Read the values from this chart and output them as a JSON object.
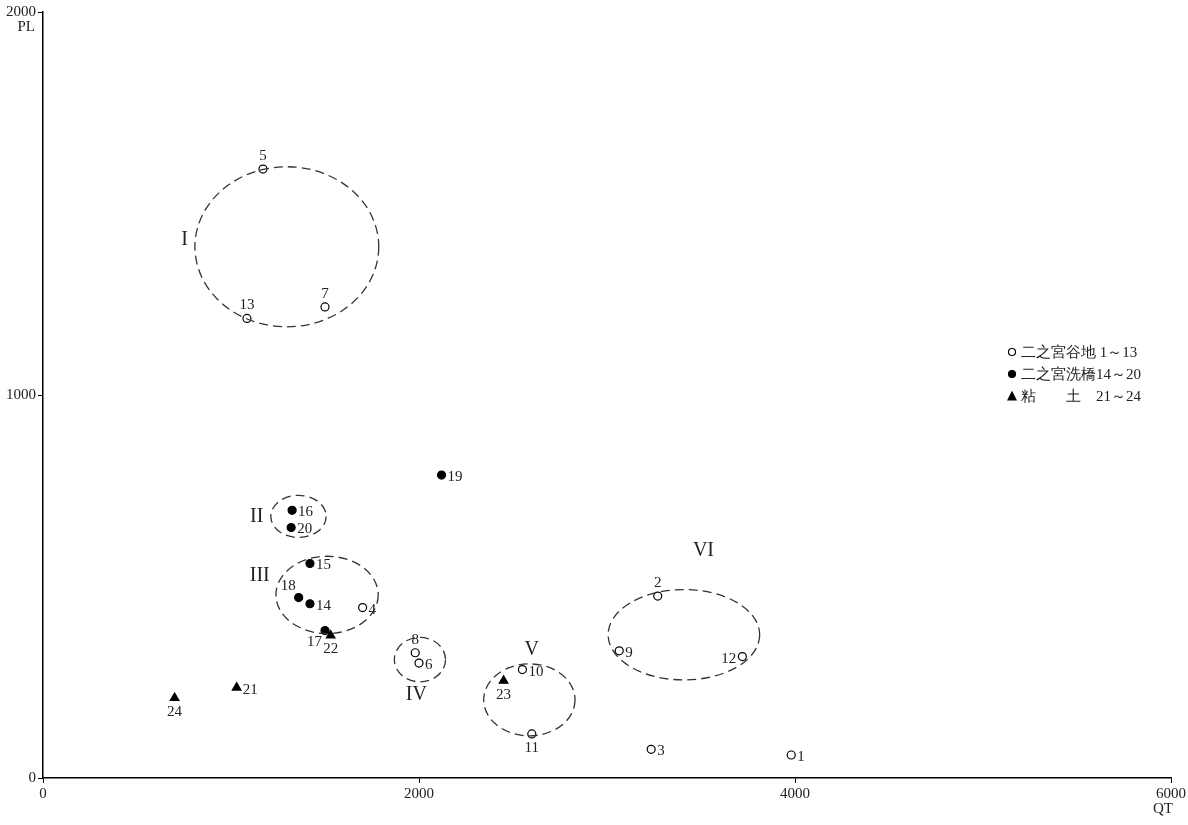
{
  "chart_data": {
    "type": "scatter",
    "xlabel": "QT",
    "ylabel": "PL",
    "xlim": [
      0,
      6000
    ],
    "xticks": [
      0,
      2000,
      4000,
      6000
    ],
    "ylim": [
      0,
      2000
    ],
    "yticks": [
      0,
      1000,
      2000
    ],
    "grid": false,
    "legend": "right",
    "series": [
      {
        "name": "二之宮谷地 1～13",
        "color": "#ffffff",
        "marker": "circle",
        "x": [
          3980,
          3270,
          3235,
          1700,
          1170,
          2000,
          1500,
          1980,
          3065,
          2550,
          2600,
          3720,
          1085
        ],
        "values": [
          60,
          475,
          75,
          445,
          1590,
          300,
          1230,
          327,
          332,
          283,
          115,
          317,
          1200
        ]
      },
      {
        "name": "二之宮洗橋14～20",
        "color": "#000000",
        "marker": "circle",
        "x": [
          1420,
          1420,
          1325,
          1500,
          1360,
          2120,
          1320
        ],
        "values": [
          455,
          560,
          699,
          385,
          471,
          791,
          654
        ]
      },
      {
        "name": "粘　　土　21～24",
        "color": "#000000",
        "marker": "triangle",
        "x": [
          1030,
          1530,
          2450,
          700
        ],
        "values": [
          236,
          372,
          254,
          209
        ]
      }
    ],
    "annotations": [
      {
        "text": "1",
        "x": 3980,
        "y": 60
      },
      {
        "text": "2",
        "x": 3270,
        "y": 475
      },
      {
        "text": "3",
        "x": 3235,
        "y": 75
      },
      {
        "text": "4",
        "x": 1700,
        "y": 445
      },
      {
        "text": "5",
        "x": 1170,
        "y": 1590
      },
      {
        "text": "6",
        "x": 2000,
        "y": 300
      },
      {
        "text": "7",
        "x": 1500,
        "y": 1230
      },
      {
        "text": "8",
        "x": 1980,
        "y": 327
      },
      {
        "text": "9",
        "x": 3065,
        "y": 332
      },
      {
        "text": "10",
        "x": 2550,
        "y": 283
      },
      {
        "text": "11",
        "x": 2600,
        "y": 115
      },
      {
        "text": "12",
        "x": 3720,
        "y": 317
      },
      {
        "text": "13",
        "x": 1085,
        "y": 1200
      },
      {
        "text": "14",
        "x": 1420,
        "y": 455
      },
      {
        "text": "15",
        "x": 1420,
        "y": 560
      },
      {
        "text": "16",
        "x": 1325,
        "y": 699
      },
      {
        "text": "17",
        "x": 1500,
        "y": 385
      },
      {
        "text": "18",
        "x": 1360,
        "y": 471
      },
      {
        "text": "19",
        "x": 2120,
        "y": 791
      },
      {
        "text": "20",
        "x": 1320,
        "y": 654
      },
      {
        "text": "21",
        "x": 1030,
        "y": 236
      },
      {
        "text": "22",
        "x": 1530,
        "y": 372
      },
      {
        "text": "23",
        "x": 2450,
        "y": 254
      },
      {
        "text": "24",
        "x": 700,
        "y": 209
      },
      "I",
      "II",
      "III",
      "IV",
      "V",
      "VI"
    ]
  }
}
